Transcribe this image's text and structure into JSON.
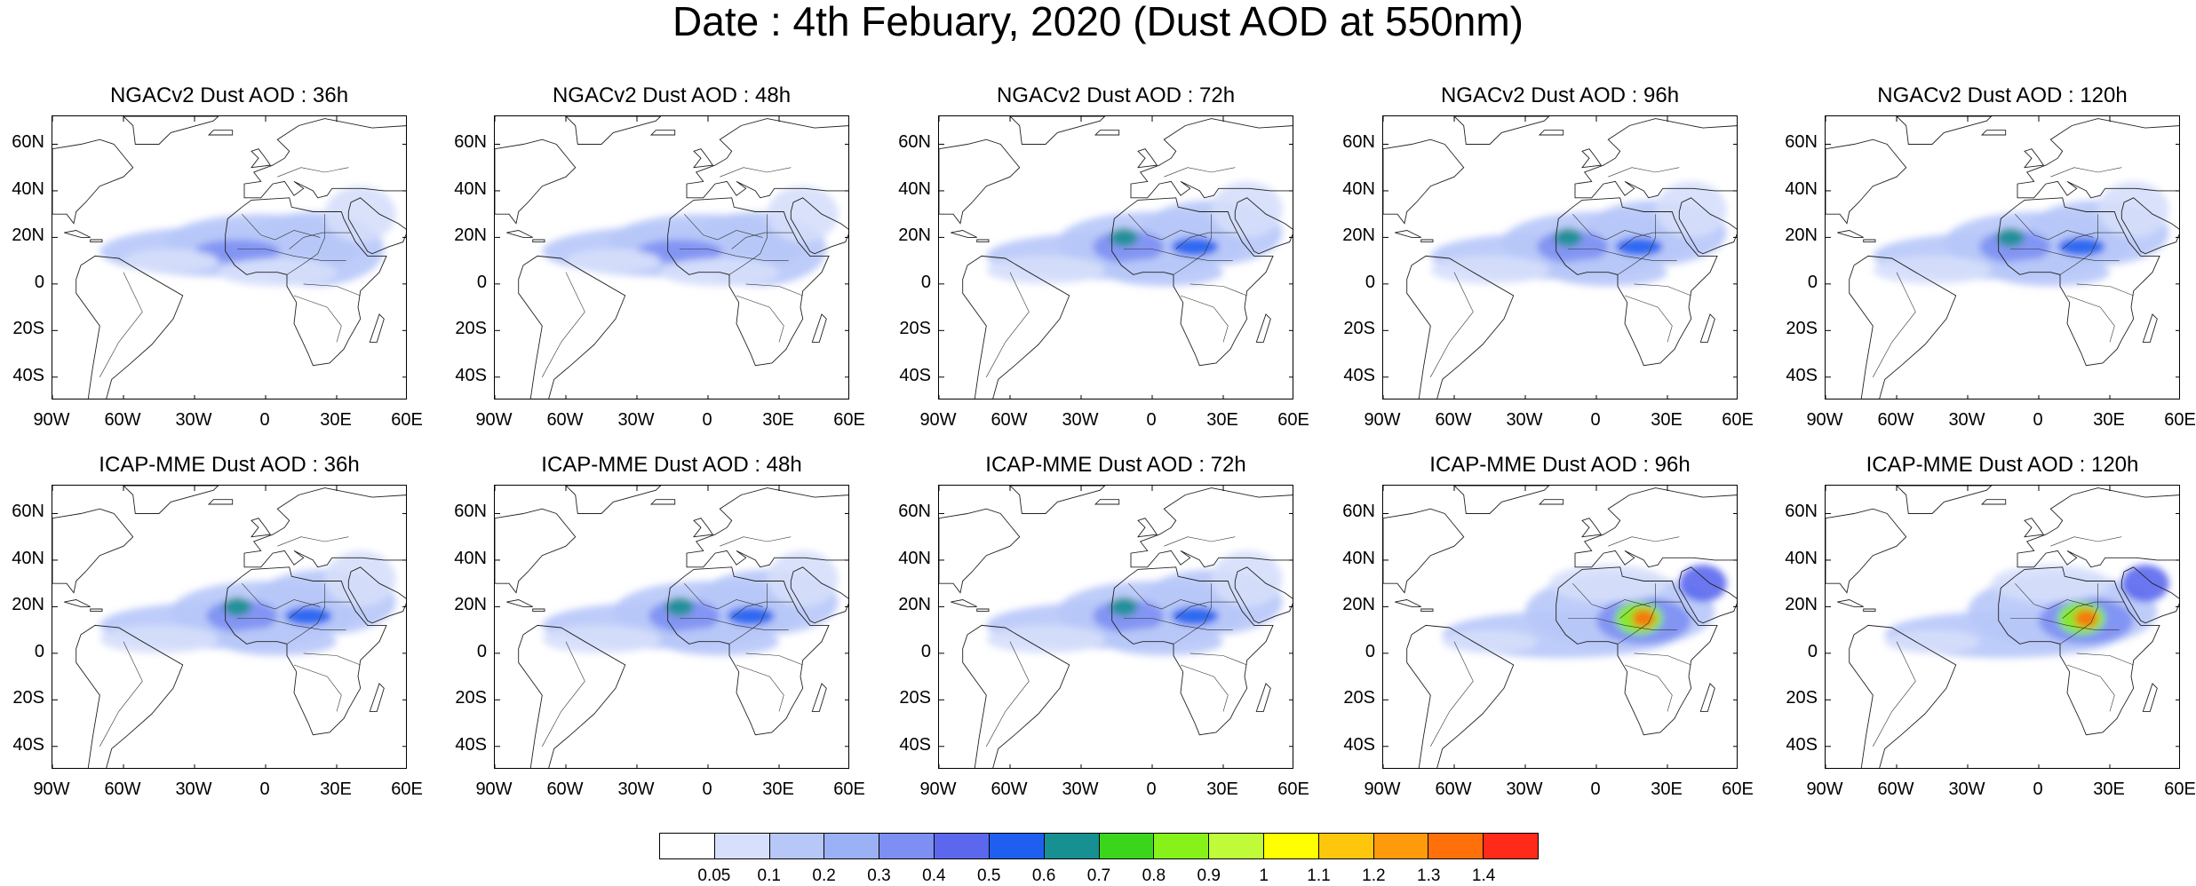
{
  "title": "Date : 4th Febuary, 2020 (Dust AOD at 550nm)",
  "lat_ticks": [
    "60N",
    "40N",
    "20N",
    "0",
    "20S",
    "40S"
  ],
  "lon_ticks": [
    "90W",
    "60W",
    "30W",
    "0",
    "30E",
    "60E"
  ],
  "map_extent": {
    "lon": [
      -90,
      60
    ],
    "lat": [
      -50,
      72
    ]
  },
  "colorbar": {
    "labels": [
      "0.05",
      "0.1",
      "0.2",
      "0.3",
      "0.4",
      "0.5",
      "0.6",
      "0.7",
      "0.8",
      "0.9",
      "1",
      "1.1",
      "1.2",
      "1.3",
      "1.4"
    ],
    "colors": [
      "#ffffff",
      "#d6dffb",
      "#b7c7f8",
      "#9bb1f6",
      "#7d8ff3",
      "#5b68ee",
      "#1f5fef",
      "#169090",
      "#3bd61b",
      "#87f21a",
      "#c0fb3a",
      "#ffff00",
      "#ffc70b",
      "#ff9a0b",
      "#ff700b",
      "#ff2a1a"
    ]
  },
  "panels": [
    {
      "title": "NGACv2 Dust AOD : 36h",
      "intensity": "low"
    },
    {
      "title": "NGACv2 Dust AOD : 48h",
      "intensity": "low"
    },
    {
      "title": "NGACv2 Dust AOD : 72h",
      "intensity": "medium"
    },
    {
      "title": "NGACv2 Dust AOD : 96h",
      "intensity": "medium"
    },
    {
      "title": "NGACv2 Dust AOD : 120h",
      "intensity": "medium"
    },
    {
      "title": "ICAP-MME Dust AOD : 36h",
      "intensity": "medium"
    },
    {
      "title": "ICAP-MME Dust AOD : 48h",
      "intensity": "medium"
    },
    {
      "title": "ICAP-MME Dust AOD : 72h",
      "intensity": "medium"
    },
    {
      "title": "ICAP-MME Dust AOD : 96h",
      "intensity": "high"
    },
    {
      "title": "ICAP-MME Dust AOD : 120h",
      "intensity": "high"
    }
  ]
}
